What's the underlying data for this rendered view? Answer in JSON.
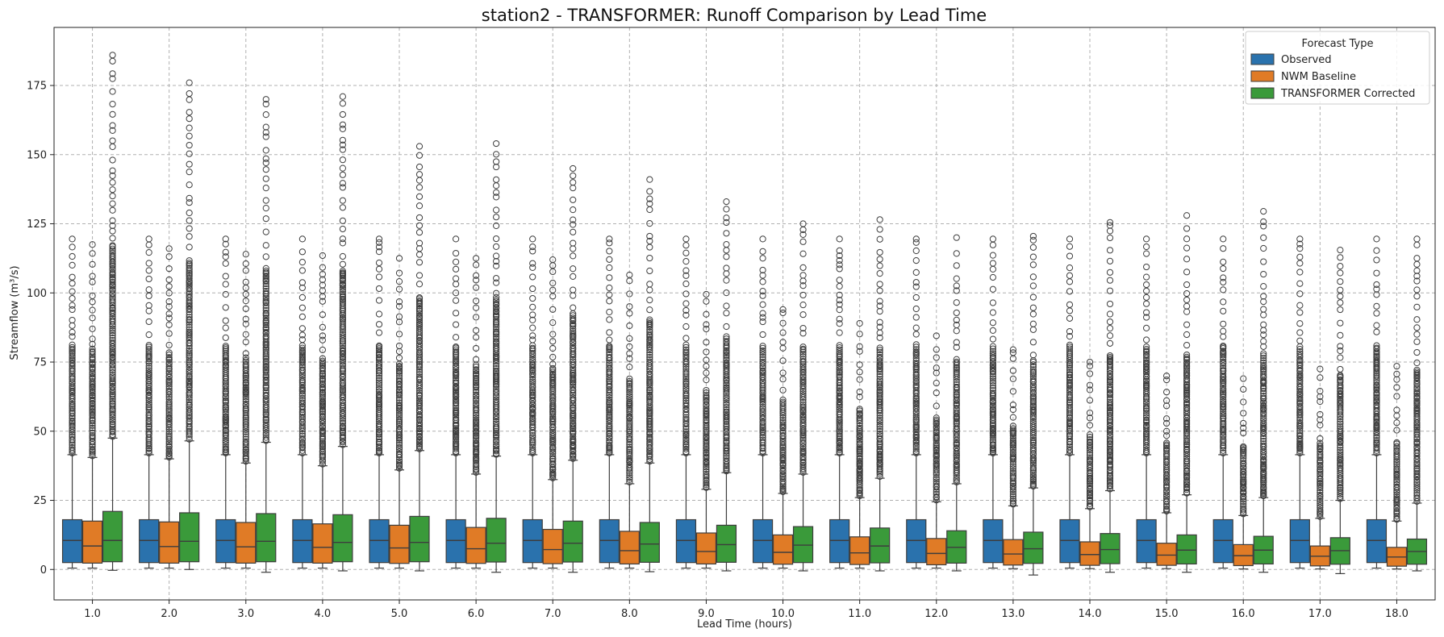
{
  "chart_data": {
    "type": "box",
    "title": "station2 - TRANSFORMER: Runoff Comparison by Lead Time",
    "xlabel": "Lead Time (hours)",
    "ylabel": "Streamflow (m³/s)",
    "ylim": [
      -11,
      196
    ],
    "yticks": [
      0,
      25,
      50,
      75,
      100,
      125,
      150,
      175
    ],
    "grid": true,
    "legend": {
      "title": "Forecast Type",
      "position": "top-right"
    },
    "categories": [
      "1.0",
      "2.0",
      "3.0",
      "4.0",
      "5.0",
      "6.0",
      "7.0",
      "8.0",
      "9.0",
      "10.0",
      "11.0",
      "12.0",
      "13.0",
      "14.0",
      "15.0",
      "16.0",
      "17.0",
      "18.0"
    ],
    "series": [
      {
        "name": "Observed",
        "color": "#2a72ad",
        "whisker_low": [
          0.5,
          0.5,
          0.5,
          0.5,
          0.5,
          0.5,
          0.5,
          0.5,
          0.5,
          0.5,
          0.5,
          0.5,
          0.5,
          0.5,
          0.5,
          0.5,
          0.5,
          0.5
        ],
        "q1": [
          2.5,
          2.5,
          2.5,
          2.5,
          2.5,
          2.5,
          2.5,
          2.5,
          2.5,
          2.5,
          2.5,
          2.5,
          2.5,
          2.5,
          2.5,
          2.5,
          2.5,
          2.5
        ],
        "median": [
          10.5,
          10.5,
          10.5,
          10.5,
          10.5,
          10.5,
          10.5,
          10.5,
          10.5,
          10.5,
          10.5,
          10.5,
          10.5,
          10.5,
          10.5,
          10.5,
          10.5,
          10.5
        ],
        "q3": [
          18,
          18,
          18,
          18,
          18,
          18,
          18,
          18,
          18,
          18,
          18,
          18,
          18,
          18,
          18,
          18,
          18,
          18
        ],
        "whisker_high": [
          41.5,
          41.5,
          41.5,
          41.5,
          41.5,
          41.5,
          41.5,
          41.5,
          41.5,
          41.5,
          41.5,
          41.5,
          41.5,
          41.5,
          41.5,
          41.5,
          41.5,
          41.5
        ],
        "outlier_max": [
          119.5,
          119.5,
          119.5,
          119.5,
          119.5,
          119.5,
          119.5,
          119.5,
          119.5,
          119.5,
          119.5,
          119.5,
          119.5,
          119.5,
          119.5,
          119.5,
          119.5,
          119.5
        ]
      },
      {
        "name": "NWM Baseline",
        "color": "#e07b26",
        "whisker_low": [
          0.5,
          0.5,
          0.5,
          0.5,
          0.5,
          0.5,
          0.5,
          0.5,
          0.5,
          0.5,
          0.5,
          0.5,
          0.3,
          0.3,
          0.3,
          0.2,
          0.2,
          0.2
        ],
        "q1": [
          2.3,
          2.3,
          2.3,
          2.3,
          2.2,
          2.2,
          2.1,
          2.0,
          2.0,
          1.9,
          1.8,
          1.7,
          1.6,
          1.5,
          1.5,
          1.4,
          1.3,
          1.2
        ],
        "median": [
          8.5,
          8.3,
          8.2,
          8.0,
          7.8,
          7.5,
          7.2,
          6.8,
          6.5,
          6.2,
          6.0,
          5.8,
          5.6,
          5.4,
          5.2,
          5.0,
          4.8,
          4.5
        ],
        "q3": [
          17.5,
          17.2,
          17.0,
          16.5,
          16.0,
          15.2,
          14.5,
          13.8,
          13.2,
          12.5,
          11.8,
          11.2,
          10.8,
          10.0,
          9.5,
          9.0,
          8.5,
          8.0
        ],
        "whisker_high": [
          40.5,
          40,
          38.5,
          37.5,
          36,
          34.5,
          32.5,
          31,
          29,
          27.5,
          26,
          24.5,
          23,
          22,
          20.5,
          19.5,
          18.5,
          17.5
        ],
        "outlier_max": [
          117.5,
          116,
          114,
          113.5,
          112.5,
          112.5,
          112,
          106.5,
          99.5,
          94,
          89,
          84.5,
          79.5,
          75,
          70,
          69,
          72.5,
          73.5
        ]
      },
      {
        "name": "TRANSFORMER Corrected",
        "color": "#3a9a3a",
        "whisker_low": [
          -0.3,
          0,
          -1,
          -0.5,
          -0.5,
          -1,
          -1,
          -0.8,
          -0.5,
          -0.5,
          -0.5,
          -0.5,
          -2,
          -1,
          -1,
          -1,
          -1.5,
          -0.5
        ],
        "q1": [
          2.8,
          2.8,
          2.8,
          2.8,
          2.8,
          2.7,
          2.7,
          2.6,
          2.6,
          2.5,
          2.4,
          2.3,
          2.2,
          2.1,
          2.0,
          2.0,
          1.9,
          1.9
        ],
        "median": [
          10.5,
          10.2,
          10.2,
          9.8,
          9.8,
          9.5,
          9.5,
          9.2,
          9.0,
          8.8,
          8.5,
          8.0,
          7.5,
          7.2,
          7.0,
          7.0,
          6.8,
          6.5
        ],
        "q3": [
          21,
          20.5,
          20.2,
          19.8,
          19.2,
          18.5,
          17.5,
          17,
          16,
          15.5,
          15,
          14,
          13.5,
          13,
          12.5,
          12,
          11.5,
          11
        ],
        "whisker_high": [
          47.5,
          46.5,
          46,
          44.5,
          43,
          41,
          39.5,
          38.5,
          35,
          34.5,
          33,
          31,
          29.5,
          28.5,
          27,
          26,
          25,
          24
        ],
        "outlier_max": [
          186,
          176,
          170,
          171,
          153,
          154,
          145,
          141,
          133,
          125,
          126.5,
          120,
          120.5,
          125.5,
          128,
          129.5,
          115.5,
          119.5
        ]
      }
    ]
  }
}
